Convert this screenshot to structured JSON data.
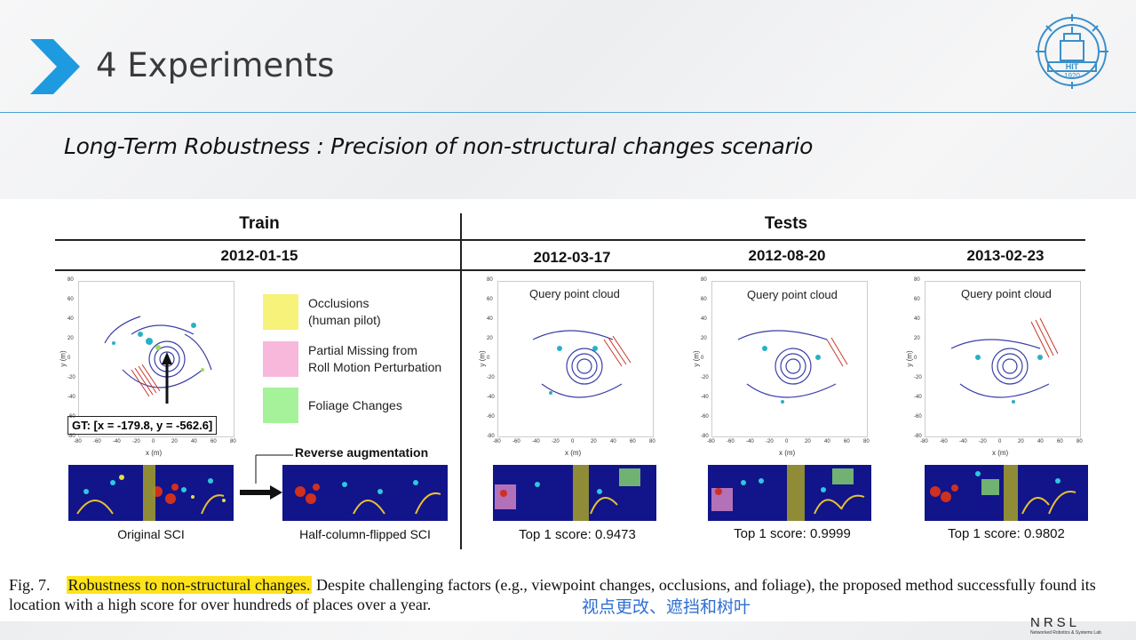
{
  "slide": {
    "title": "4 Experiments",
    "subtitle": "Long-Term Robustness : Precision of non-structural changes scenario"
  },
  "logo": {
    "year": "1920",
    "abbr": "HIT"
  },
  "figure": {
    "train_header": "Train",
    "tests_header": "Tests",
    "dates": [
      "2012-01-15",
      "2012-03-17",
      "2012-08-20",
      "2013-02-23"
    ],
    "query_label": "Query point cloud",
    "axis": {
      "xlabel": "x (m)",
      "ylabel": "y (m)",
      "xticks": [
        "-80",
        "-60",
        "-40",
        "-20",
        "0",
        "20",
        "40",
        "60",
        "80"
      ],
      "yticks": [
        "80",
        "60",
        "40",
        "20",
        "0",
        "-20",
        "-40",
        "-60",
        "-80"
      ]
    },
    "legend": [
      {
        "label_line1": "Occlusions",
        "label_line2": "(human pilot)",
        "color": "#f7f27a"
      },
      {
        "label_line1": "Partial Missing from",
        "label_line2": "Roll Motion Perturbation",
        "color": "#f7b8dc"
      },
      {
        "label_line1": "Foliage Changes",
        "label_line2": "",
        "color": "#a6f29a"
      }
    ],
    "gt_label": "GT: [x = -179.8, y = -562.6]",
    "reverse_aug": "Reverse augmentation",
    "captions": {
      "original": "Original SCI",
      "flipped": "Half-column-flipped SCI"
    },
    "scores": [
      "Top 1 score: 0.9473",
      "Top 1 score: 0.9999",
      "Top 1 score: 0.9802"
    ]
  },
  "caption": {
    "fig": "Fig. 7.",
    "highlight": "Robustness to non-structural changes.",
    "rest": " Despite challenging factors (e.g., viewpoint changes, occlusions, and foliage), the proposed method successfully found its location with a high score for over hundreds of places over a year.",
    "chinese_note": "视点更改、遮挡和树叶"
  },
  "footer": {
    "lab_name": "NRSL",
    "lab_full": "Networked Robotics & Systems Lab"
  },
  "colors": {
    "accent": "#1e9be0",
    "rule": "#4aa3d8",
    "highlight": "#ffe31a",
    "sci_bg": "#12148a",
    "band": "#9a9630"
  }
}
